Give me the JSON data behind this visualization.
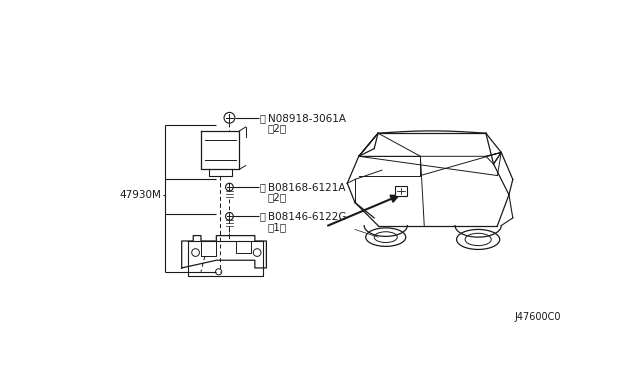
{
  "bg_color": "#ffffff",
  "line_color": "#1a1a1a",
  "text_color": "#1a1a1a",
  "title_code": "J47600C0",
  "label1_text": "N08918-3061A",
  "label1_sub": "（2）",
  "label2_text": "B08168-6121A",
  "label2_sub": "（2）",
  "label3_text": "B08146-6122G",
  "label3_sub": "（1）",
  "part_label": "47930M"
}
